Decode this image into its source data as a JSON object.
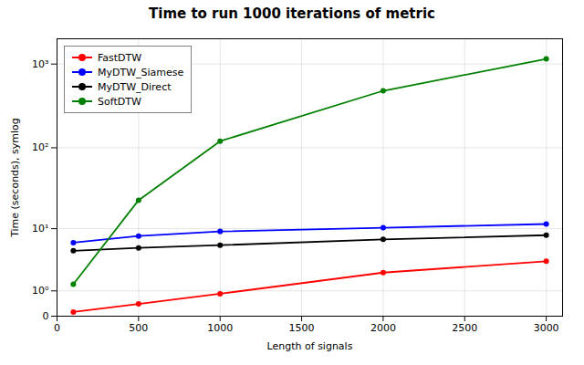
{
  "chart_data": {
    "type": "line",
    "title": "Time to run 1000 iterations of metric",
    "xlabel": "Length of signals",
    "ylabel": "Time (seconds), symlog",
    "x": [
      100,
      500,
      1000,
      2000,
      3000
    ],
    "series": [
      {
        "name": "FastDTW",
        "color": "#ff0000",
        "values": [
          0.12,
          0.4,
          0.85,
          2.3,
          3.5
        ]
      },
      {
        "name": "MyDTW_Siamese",
        "color": "#0000ff",
        "values": [
          6.5,
          8.0,
          9.2,
          10.3,
          11.5
        ]
      },
      {
        "name": "MyDTW_Direct",
        "color": "#000000",
        "values": [
          5.0,
          5.5,
          6.0,
          7.2,
          8.2
        ]
      },
      {
        "name": "SoftDTW",
        "color": "#008000",
        "values": [
          1.4,
          23.0,
          120.0,
          480.0,
          1150.0
        ]
      }
    ],
    "xlim": [
      0,
      3100
    ],
    "xticks": [
      0,
      500,
      1000,
      1500,
      2000,
      2500,
      3000
    ],
    "ylim": [
      0,
      2000
    ],
    "yticks": [
      0,
      {
        "value": 1,
        "label": "10⁰"
      },
      {
        "value": 10,
        "label": "10¹"
      },
      {
        "value": 100,
        "label": "10²"
      },
      {
        "value": 1000,
        "label": "10³"
      }
    ],
    "log": "y",
    "grid": true,
    "legend": "upper left",
    "marker": "circle"
  }
}
